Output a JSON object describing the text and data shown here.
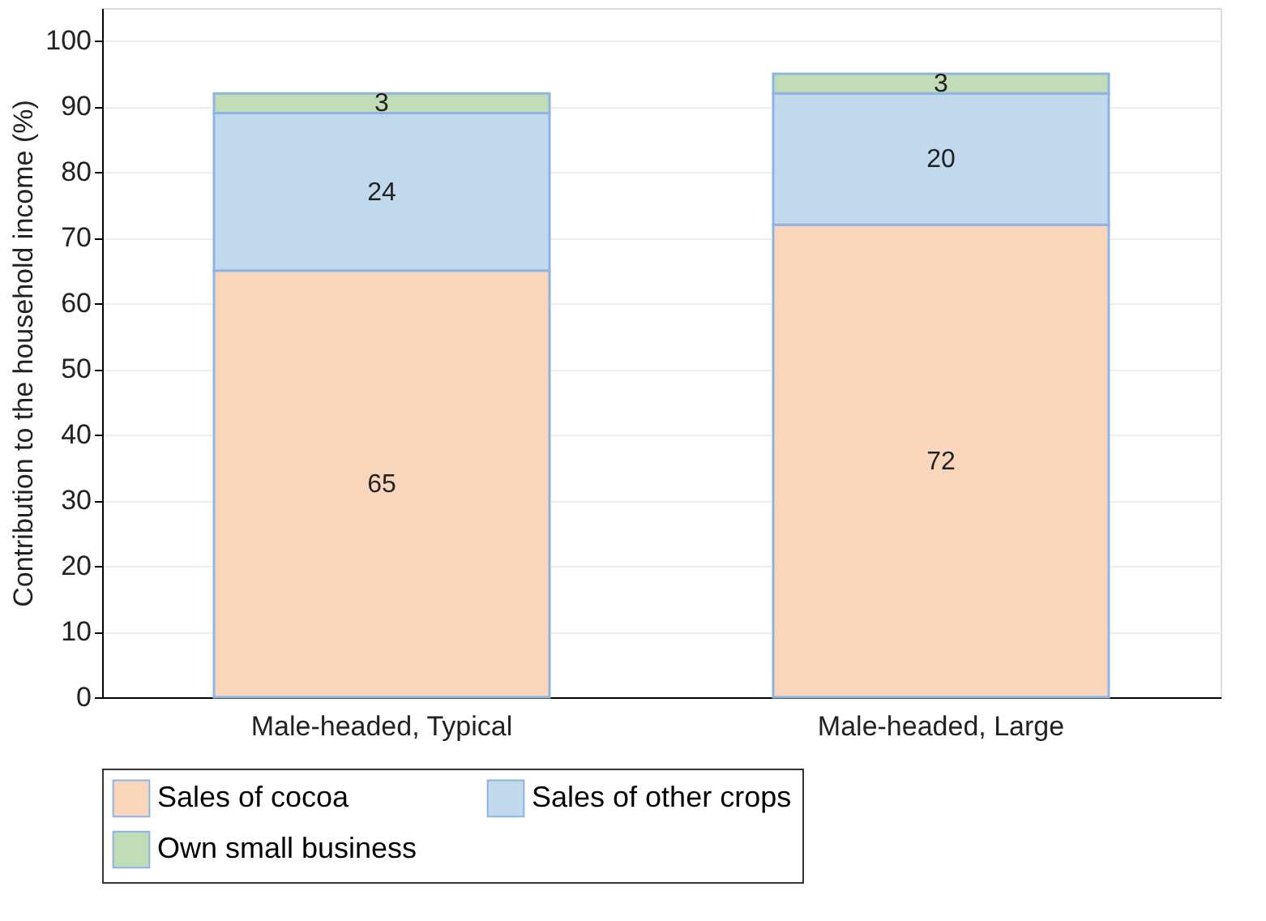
{
  "chart_data": {
    "type": "bar",
    "stacked": true,
    "ylabel": "Contribution to the household income (%)",
    "categories": [
      "Male-headed, Typical",
      "Male-headed, Large"
    ],
    "series": [
      {
        "name": "Sales of cocoa",
        "color": "#f9d6bb",
        "values": [
          65,
          72
        ]
      },
      {
        "name": "Sales of other crops",
        "color": "#c2d8ed",
        "values": [
          24,
          20
        ]
      },
      {
        "name": "Own small business",
        "color": "#c1dcb6",
        "values": [
          3,
          3
        ]
      }
    ],
    "ylim": [
      0,
      105
    ],
    "yticks": [
      0,
      10,
      20,
      30,
      40,
      50,
      60,
      70,
      80,
      90,
      100
    ],
    "grid": "y",
    "legend": "bottom",
    "data_labels": true
  }
}
